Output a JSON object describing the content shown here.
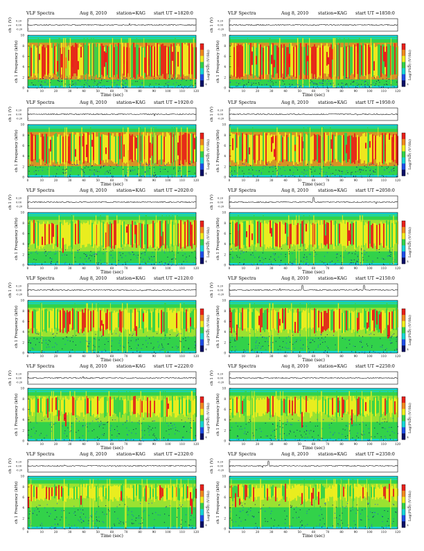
{
  "chart_data": [
    {
      "type": "heatmap",
      "title": "VLF Spectra",
      "date": "Aug 8, 2010",
      "station": "station=KAG",
      "start": "start UT =1820:0",
      "wave_label": "ch 1 (V)",
      "wave_ticks": [
        "0.20",
        "0.00",
        "-0.20"
      ],
      "ylabel": "ch 1 Frequency (kHz)",
      "xlabel": "Time (sec)",
      "cbar_label": "Log(PSD) (V²/Hz)",
      "x_ticks": [
        "0",
        "10",
        "20",
        "30",
        "40",
        "50",
        "60",
        "70",
        "80",
        "90",
        "100",
        "110",
        "120"
      ],
      "y_ticks": [
        "0",
        "2",
        "4",
        "6",
        "8",
        "10"
      ],
      "xlim": [
        0,
        120
      ],
      "ylim": [
        0,
        10
      ],
      "cbar_ticks": [
        "-2",
        "-4"
      ],
      "spikes": []
    },
    {
      "type": "heatmap",
      "title": "VLF Spectra",
      "date": "Aug 8, 2010",
      "station": "station=KAG",
      "start": "start UT =1850:0",
      "wave_label": "ch 1 (V)",
      "wave_ticks": [
        "0.20",
        "0.00",
        "-0.20"
      ],
      "ylabel": "ch 1 Frequency (kHz)",
      "xlabel": "Time (sec)",
      "cbar_label": "Log(PSD) (V²/Hz)",
      "x_ticks": [
        "0",
        "10",
        "20",
        "30",
        "40",
        "50",
        "60",
        "70",
        "80",
        "90",
        "100",
        "110",
        "120"
      ],
      "y_ticks": [
        "0",
        "2",
        "4",
        "6",
        "8",
        "10"
      ],
      "xlim": [
        0,
        120
      ],
      "ylim": [
        0,
        10
      ],
      "cbar_ticks": [
        "-2",
        "-4"
      ],
      "spikes": []
    },
    {
      "type": "heatmap",
      "title": "VLF Spectra",
      "date": "Aug 8, 2010",
      "station": "station=KAG",
      "start": "start UT =1920:0",
      "wave_label": "ch 1 (V)",
      "wave_ticks": [
        "0.20",
        "0.00",
        "-0.20"
      ],
      "ylabel": "ch 1 Frequency (kHz)",
      "xlabel": "Time (sec)",
      "cbar_label": "Log(PSD) (V²/Hz)",
      "x_ticks": [
        "0",
        "10",
        "20",
        "30",
        "40",
        "50",
        "60",
        "70",
        "80",
        "90",
        "100",
        "110",
        "120"
      ],
      "y_ticks": [
        "0",
        "2",
        "4",
        "6",
        "8",
        "10"
      ],
      "xlim": [
        0,
        120
      ],
      "ylim": [
        0,
        10
      ],
      "cbar_ticks": [
        "-2",
        "-4"
      ],
      "spikes": []
    },
    {
      "type": "heatmap",
      "title": "VLF Spectra",
      "date": "Aug 8, 2010",
      "station": "station=KAG",
      "start": "start UT =1950:0",
      "wave_label": "ch 1 (V)",
      "wave_ticks": [
        "0.20",
        "0.00",
        "-0.20"
      ],
      "ylabel": "ch 1 Frequency (kHz)",
      "xlabel": "Time (sec)",
      "cbar_label": "Log(PSD) (V²/Hz)",
      "x_ticks": [
        "0",
        "10",
        "20",
        "30",
        "40",
        "50",
        "60",
        "70",
        "80",
        "90",
        "100",
        "110",
        "120"
      ],
      "y_ticks": [
        "0",
        "2",
        "4",
        "6",
        "8",
        "10"
      ],
      "xlim": [
        0,
        120
      ],
      "ylim": [
        0,
        10
      ],
      "cbar_ticks": [
        "-2",
        "-4"
      ],
      "spikes": []
    },
    {
      "type": "heatmap",
      "title": "VLF Spectra",
      "date": "Aug 8, 2010",
      "station": "station=KAG",
      "start": "start UT =2020:0",
      "wave_label": "ch 1 (V)",
      "wave_ticks": [
        "0.20",
        "0.00",
        "-0.20"
      ],
      "ylabel": "ch 1 Frequency (kHz)",
      "xlabel": "Time (sec)",
      "cbar_label": "Log(PSD) (V²/Hz)",
      "x_ticks": [
        "0",
        "10",
        "20",
        "30",
        "40",
        "50",
        "60",
        "70",
        "80",
        "90",
        "100",
        "110",
        "120"
      ],
      "y_ticks": [
        "0",
        "2",
        "4",
        "6",
        "8",
        "10"
      ],
      "xlim": [
        0,
        120
      ],
      "ylim": [
        0,
        10
      ],
      "cbar_ticks": [
        "-2",
        "-4"
      ],
      "spikes": []
    },
    {
      "type": "heatmap",
      "title": "VLF Spectra",
      "date": "Aug 8, 2010",
      "station": "station=KAG",
      "start": "start UT =2050:0",
      "wave_label": "ch 1 (V)",
      "wave_ticks": [
        "0.20",
        "0.00",
        "-0.20"
      ],
      "ylabel": "ch 1 Frequency (kHz)",
      "xlabel": "Time (sec)",
      "cbar_label": "Log(PSD) (V²/Hz)",
      "x_ticks": [
        "0",
        "10",
        "20",
        "30",
        "40",
        "50",
        "60",
        "70",
        "80",
        "90",
        "100",
        "110",
        "120"
      ],
      "y_ticks": [
        "0",
        "2",
        "4",
        "6",
        "8",
        "10"
      ],
      "xlim": [
        0,
        120
      ],
      "ylim": [
        0,
        10
      ],
      "cbar_ticks": [
        "-2",
        "-4"
      ],
      "spikes": [
        60
      ]
    },
    {
      "type": "heatmap",
      "title": "VLF Spectra",
      "date": "Aug 8, 2010",
      "station": "station=KAG",
      "start": "start UT =2120:0",
      "wave_label": "ch 1 (V)",
      "wave_ticks": [
        "0.20",
        "0.00",
        "-0.20"
      ],
      "ylabel": "ch 1 Frequency (kHz)",
      "xlabel": "Time (sec)",
      "cbar_label": "Log(PSD) (V²/Hz)",
      "x_ticks": [
        "0",
        "10",
        "20",
        "30",
        "40",
        "50",
        "60",
        "70",
        "80",
        "90",
        "100",
        "110",
        "120"
      ],
      "y_ticks": [
        "0",
        "2",
        "4",
        "6",
        "8",
        "10"
      ],
      "xlim": [
        0,
        120
      ],
      "ylim": [
        0,
        10
      ],
      "cbar_ticks": [
        "-2",
        "-4"
      ],
      "spikes": []
    },
    {
      "type": "heatmap",
      "title": "VLF Spectra",
      "date": "Aug 8, 2010",
      "station": "station=KAG",
      "start": "start UT =2150:0",
      "wave_label": "ch 1 (V)",
      "wave_ticks": [
        "0.20",
        "0.00",
        "-0.20"
      ],
      "ylabel": "ch 1 Frequency (kHz)",
      "xlabel": "Time (sec)",
      "cbar_label": "Log(PSD) (V²/Hz)",
      "x_ticks": [
        "0",
        "10",
        "20",
        "30",
        "40",
        "50",
        "60",
        "70",
        "80",
        "90",
        "100",
        "110",
        "120"
      ],
      "y_ticks": [
        "0",
        "2",
        "4",
        "6",
        "8",
        "10"
      ],
      "xlim": [
        0,
        120
      ],
      "ylim": [
        0,
        10
      ],
      "cbar_ticks": [
        "-2",
        "-4"
      ],
      "spikes": [
        52,
        96
      ]
    },
    {
      "type": "heatmap",
      "title": "VLF Spectra",
      "date": "Aug 8, 2010",
      "station": "station=KAG",
      "start": "start UT =2220:0",
      "wave_label": "ch 1 (V)",
      "wave_ticks": [
        "0.20",
        "0.00",
        "-0.20"
      ],
      "ylabel": "ch 1 Frequency (kHz)",
      "xlabel": "Time (sec)",
      "cbar_label": "Log(PSD) (V²/Hz)",
      "x_ticks": [
        "0",
        "10",
        "20",
        "30",
        "40",
        "50",
        "60",
        "70",
        "80",
        "90",
        "100",
        "110",
        "120"
      ],
      "y_ticks": [
        "0",
        "2",
        "4",
        "6",
        "8",
        "10"
      ],
      "xlim": [
        0,
        120
      ],
      "ylim": [
        0,
        10
      ],
      "cbar_ticks": [
        "-2",
        "-4"
      ],
      "spikes": []
    },
    {
      "type": "heatmap",
      "title": "VLF Spectra",
      "date": "Aug 8, 2010",
      "station": "station=KAG",
      "start": "start UT =2250:0",
      "wave_label": "ch 1 (V)",
      "wave_ticks": [
        "0.20",
        "0.00",
        "-0.20"
      ],
      "ylabel": "ch 1 Frequency (kHz)",
      "xlabel": "Time (sec)",
      "cbar_label": "Log(PSD) (V²/Hz)",
      "x_ticks": [
        "0",
        "10",
        "20",
        "30",
        "40",
        "50",
        "60",
        "70",
        "80",
        "90",
        "100",
        "110",
        "120"
      ],
      "y_ticks": [
        "0",
        "2",
        "4",
        "6",
        "8",
        "10"
      ],
      "xlim": [
        0,
        120
      ],
      "ylim": [
        0,
        10
      ],
      "cbar_ticks": [
        "-2",
        "-4"
      ],
      "spikes": []
    },
    {
      "type": "heatmap",
      "title": "VLF Spectra",
      "date": "Aug 8, 2010",
      "station": "station=KAG",
      "start": "start UT =2320:0",
      "wave_label": "ch 1 (V)",
      "wave_ticks": [
        "0.20",
        "0.00",
        "-0.20"
      ],
      "ylabel": "ch 1 Frequency (kHz)",
      "xlabel": "Time (sec)",
      "cbar_label": "Log(PSD) (V²/Hz)",
      "x_ticks": [
        "0",
        "10",
        "20",
        "30",
        "40",
        "50",
        "60",
        "70",
        "80",
        "90",
        "100",
        "110",
        "120"
      ],
      "y_ticks": [
        "0",
        "2",
        "4",
        "6",
        "8",
        "10"
      ],
      "xlim": [
        0,
        120
      ],
      "ylim": [
        0,
        10
      ],
      "cbar_ticks": [
        "-2",
        "-4"
      ],
      "spikes": []
    },
    {
      "type": "heatmap",
      "title": "VLF Spectra",
      "date": "Aug 8, 2010",
      "station": "station=KAG",
      "start": "start UT =2350:0",
      "wave_label": "ch 1 (V)",
      "wave_ticks": [
        "0.20",
        "0.00",
        "-0.20"
      ],
      "ylabel": "ch 1 Frequency (kHz)",
      "xlabel": "Time (sec)",
      "cbar_label": "Log(PSD) (V²/Hz)",
      "x_ticks": [
        "0",
        "10",
        "20",
        "30",
        "40",
        "50",
        "60",
        "70",
        "80",
        "90",
        "100",
        "110",
        "120"
      ],
      "y_ticks": [
        "0",
        "2",
        "4",
        "6",
        "8",
        "10"
      ],
      "xlim": [
        0,
        120
      ],
      "ylim": [
        0,
        10
      ],
      "cbar_ticks": [
        "-2",
        "-4"
      ],
      "spikes": [
        28
      ]
    }
  ],
  "colors": {
    "red": "#e8201a",
    "yellow": "#f2ee1e",
    "green": "#32d24a",
    "cyan": "#17d6d6",
    "blue": "#1f4fe8",
    "navy": "#0b0f66",
    "orange": "#f28a1e"
  }
}
